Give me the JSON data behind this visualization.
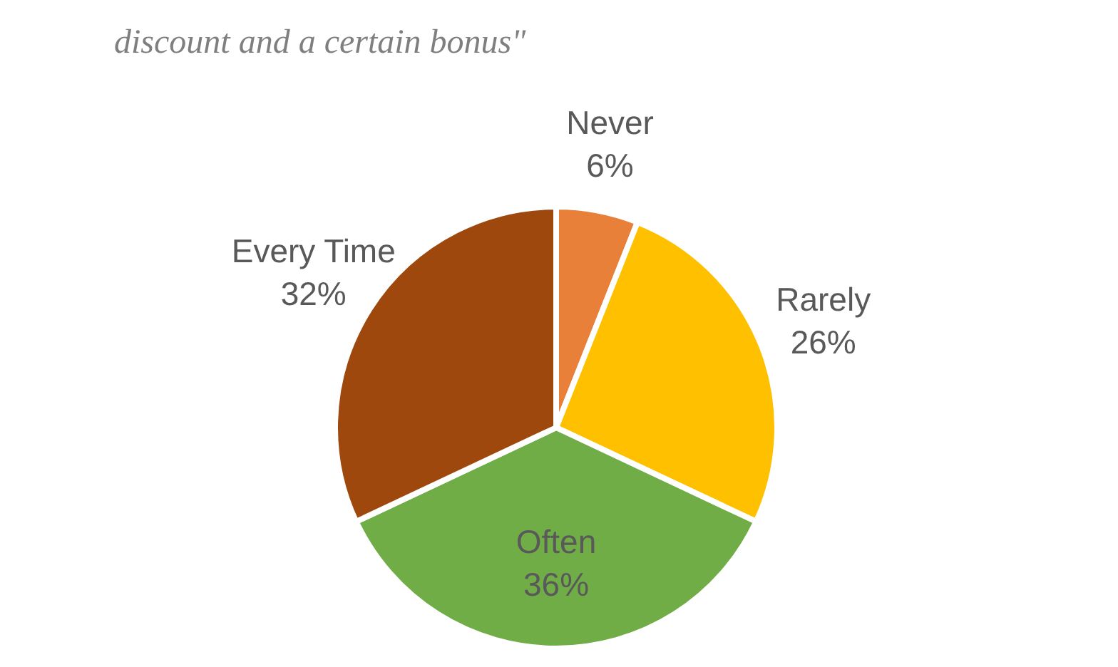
{
  "chart_data": {
    "type": "pie",
    "title": "discount and a certain bonus\"",
    "categories": [
      "Never",
      "Rarely",
      "Often",
      "Every Time"
    ],
    "values": [
      6,
      26,
      36,
      32
    ],
    "colors": [
      "#e8803a",
      "#ffc000",
      "#70ad47",
      "#9e480e"
    ],
    "value_labels": [
      "6%",
      "26%",
      "36%",
      "32%"
    ]
  }
}
